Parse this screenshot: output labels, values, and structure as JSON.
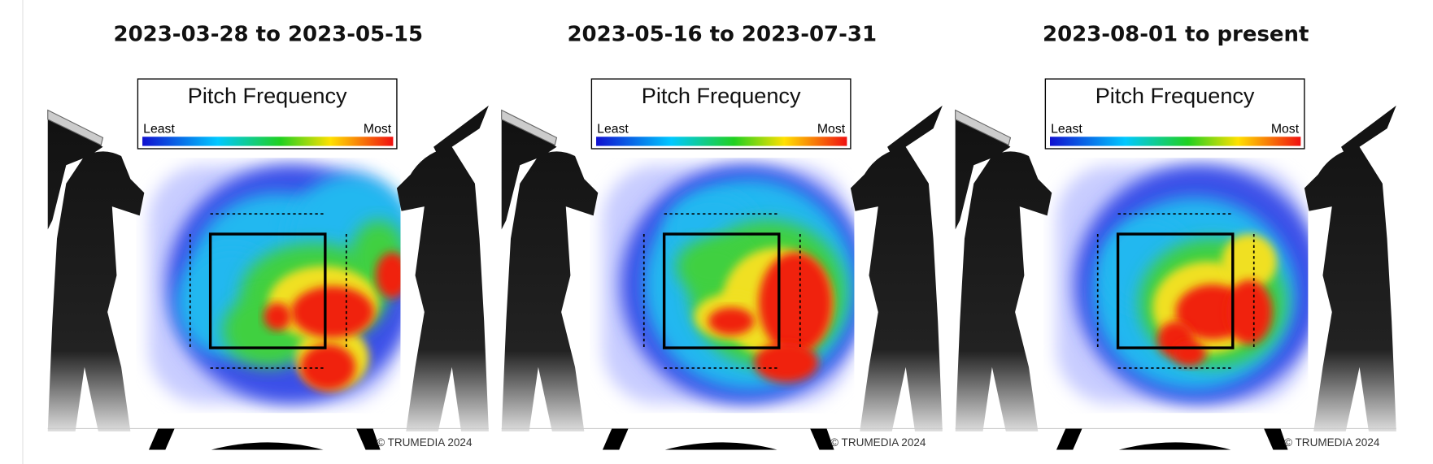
{
  "panels": [
    {
      "title": "2023-03-28 to 2023-05-15",
      "legend": {
        "title": "Pitch Frequency",
        "low": "Least",
        "high": "Most"
      },
      "credit": "© TRUMEDIA 2024"
    },
    {
      "title": "2023-05-16 to 2023-07-31",
      "legend": {
        "title": "Pitch Frequency",
        "low": "Least",
        "high": "Most"
      },
      "credit": "© TRUMEDIA 2024"
    },
    {
      "title": "2023-08-01 to present",
      "legend": {
        "title": "Pitch Frequency",
        "low": "Least",
        "high": "Most"
      },
      "credit": "© TRUMEDIA 2024"
    }
  ]
}
